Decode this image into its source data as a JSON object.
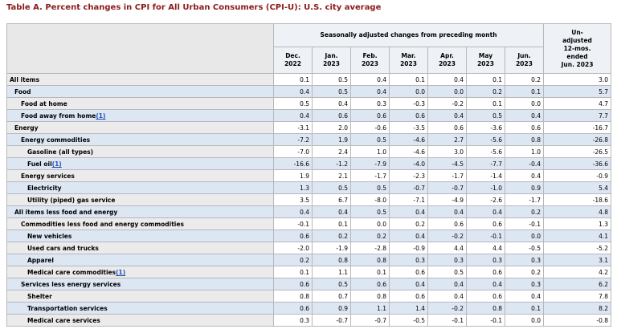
{
  "title": "Table A. Percent changes in CPI for All Urban Consumers (CPI-U): U.S. city average",
  "header": {
    "group_label": "Seasonally adjusted changes from preceding month",
    "months": [
      {
        "mon": "Dec.",
        "yr": "2022"
      },
      {
        "mon": "Jan.",
        "yr": "2023"
      },
      {
        "mon": "Feb.",
        "yr": "2023"
      },
      {
        "mon": "Mar.",
        "yr": "2023"
      },
      {
        "mon": "Apr.",
        "yr": "2023"
      },
      {
        "mon": "May",
        "yr": "2023"
      },
      {
        "mon": "Jun.",
        "yr": "2023"
      }
    ],
    "unadj": [
      "Un-",
      "adjusted",
      "12-mos.",
      "ended",
      "Jun. 2023"
    ]
  },
  "rows": [
    {
      "label": "All items",
      "fn": "",
      "indent": 0,
      "shade": "white",
      "values": [
        "0.1",
        "0.5",
        "0.4",
        "0.1",
        "0.4",
        "0.1",
        "0.2",
        "3.0"
      ]
    },
    {
      "label": "Food",
      "fn": "",
      "indent": 1,
      "shade": "blue",
      "values": [
        "0.4",
        "0.5",
        "0.4",
        "0.0",
        "0.0",
        "0.2",
        "0.1",
        "5.7"
      ]
    },
    {
      "label": "Food at home",
      "fn": "",
      "indent": 2,
      "shade": "white",
      "values": [
        "0.5",
        "0.4",
        "0.3",
        "-0.3",
        "-0.2",
        "0.1",
        "0.0",
        "4.7"
      ]
    },
    {
      "label": "Food away from home",
      "fn": "(1)",
      "indent": 2,
      "shade": "blue",
      "values": [
        "0.4",
        "0.6",
        "0.6",
        "0.6",
        "0.4",
        "0.5",
        "0.4",
        "7.7"
      ]
    },
    {
      "label": "Energy",
      "fn": "",
      "indent": 1,
      "shade": "white",
      "values": [
        "-3.1",
        "2.0",
        "-0.6",
        "-3.5",
        "0.6",
        "-3.6",
        "0.6",
        "-16.7"
      ]
    },
    {
      "label": "Energy commodities",
      "fn": "",
      "indent": 2,
      "shade": "blue",
      "values": [
        "-7.2",
        "1.9",
        "0.5",
        "-4.6",
        "2.7",
        "-5.6",
        "0.8",
        "-26.8"
      ]
    },
    {
      "label": "Gasoline (all types)",
      "fn": "",
      "indent": 3,
      "shade": "white",
      "values": [
        "-7.0",
        "2.4",
        "1.0",
        "-4.6",
        "3.0",
        "-5.6",
        "1.0",
        "-26.5"
      ]
    },
    {
      "label": "Fuel oil",
      "fn": "(1)",
      "indent": 3,
      "shade": "blue",
      "values": [
        "-16.6",
        "-1.2",
        "-7.9",
        "-4.0",
        "-4.5",
        "-7.7",
        "-0.4",
        "-36.6"
      ]
    },
    {
      "label": "Energy services",
      "fn": "",
      "indent": 2,
      "shade": "white",
      "values": [
        "1.9",
        "2.1",
        "-1.7",
        "-2.3",
        "-1.7",
        "-1.4",
        "0.4",
        "-0.9"
      ]
    },
    {
      "label": "Electricity",
      "fn": "",
      "indent": 3,
      "shade": "blue",
      "values": [
        "1.3",
        "0.5",
        "0.5",
        "-0.7",
        "-0.7",
        "-1.0",
        "0.9",
        "5.4"
      ]
    },
    {
      "label": "Utility (piped) gas service",
      "fn": "",
      "indent": 3,
      "shade": "white",
      "values": [
        "3.5",
        "6.7",
        "-8.0",
        "-7.1",
        "-4.9",
        "-2.6",
        "-1.7",
        "-18.6"
      ]
    },
    {
      "label": "All items less food and energy",
      "fn": "",
      "indent": 1,
      "shade": "blue",
      "values": [
        "0.4",
        "0.4",
        "0.5",
        "0.4",
        "0.4",
        "0.4",
        "0.2",
        "4.8"
      ]
    },
    {
      "label": "Commodities less food and energy commodities",
      "fn": "",
      "indent": 2,
      "shade": "white",
      "values": [
        "-0.1",
        "0.1",
        "0.0",
        "0.2",
        "0.6",
        "0.6",
        "-0.1",
        "1.3"
      ]
    },
    {
      "label": "New vehicles",
      "fn": "",
      "indent": 3,
      "shade": "blue",
      "values": [
        "0.6",
        "0.2",
        "0.2",
        "0.4",
        "-0.2",
        "-0.1",
        "0.0",
        "4.1"
      ]
    },
    {
      "label": "Used cars and trucks",
      "fn": "",
      "indent": 3,
      "shade": "white",
      "values": [
        "-2.0",
        "-1.9",
        "-2.8",
        "-0.9",
        "4.4",
        "4.4",
        "-0.5",
        "-5.2"
      ]
    },
    {
      "label": "Apparel",
      "fn": "",
      "indent": 3,
      "shade": "blue",
      "values": [
        "0.2",
        "0.8",
        "0.8",
        "0.3",
        "0.3",
        "0.3",
        "0.3",
        "3.1"
      ]
    },
    {
      "label": "Medical care commodities",
      "fn": "(1)",
      "indent": 3,
      "shade": "white",
      "values": [
        "0.1",
        "1.1",
        "0.1",
        "0.6",
        "0.5",
        "0.6",
        "0.2",
        "4.2"
      ]
    },
    {
      "label": "Services less energy services",
      "fn": "",
      "indent": 2,
      "shade": "blue",
      "values": [
        "0.6",
        "0.5",
        "0.6",
        "0.4",
        "0.4",
        "0.4",
        "0.3",
        "6.2"
      ]
    },
    {
      "label": "Shelter",
      "fn": "",
      "indent": 3,
      "shade": "white",
      "values": [
        "0.8",
        "0.7",
        "0.8",
        "0.6",
        "0.4",
        "0.6",
        "0.4",
        "7.8"
      ]
    },
    {
      "label": "Transportation services",
      "fn": "",
      "indent": 3,
      "shade": "blue",
      "values": [
        "0.6",
        "0.9",
        "1.1",
        "1.4",
        "-0.2",
        "0.8",
        "0.1",
        "8.2"
      ]
    },
    {
      "label": "Medical care services",
      "fn": "",
      "indent": 3,
      "shade": "white",
      "values": [
        "0.3",
        "-0.7",
        "-0.7",
        "-0.5",
        "-0.1",
        "-0.1",
        "0.0",
        "-0.8"
      ]
    }
  ]
}
